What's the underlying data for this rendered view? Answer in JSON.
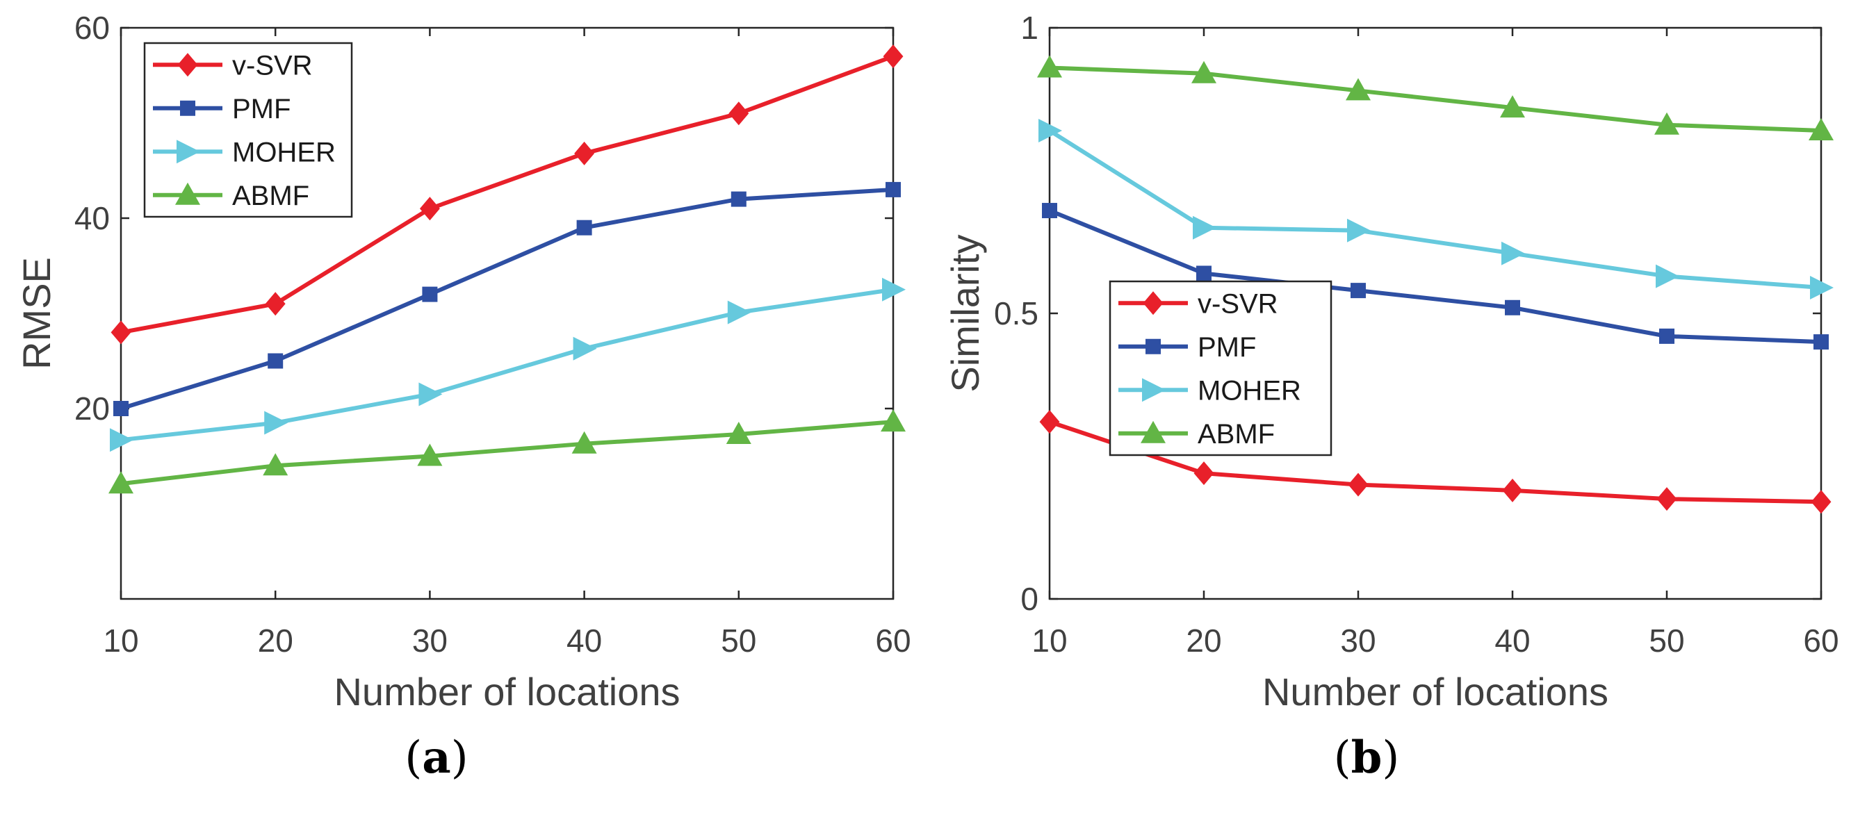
{
  "chart_data": [
    {
      "type": "line",
      "panel_label": "(a)",
      "panel_letter": "a",
      "xlabel": "Number of locations",
      "ylabel": "RMSE",
      "x": [
        10,
        20,
        30,
        40,
        50,
        60
      ],
      "xlim": [
        10,
        60
      ],
      "ylim": [
        0,
        60
      ],
      "xticks": [
        "10",
        "20",
        "30",
        "40",
        "50",
        "60"
      ],
      "yticks": [
        "20",
        "40",
        "60"
      ],
      "ytick_values": [
        20,
        40,
        60
      ],
      "legend_position": "top-left",
      "series": [
        {
          "name": "v-SVR",
          "color": "#e8202a",
          "marker": "diamond",
          "values": [
            28,
            31,
            41,
            46.8,
            51,
            57
          ]
        },
        {
          "name": "PMF",
          "color": "#2e4fa3",
          "marker": "square",
          "values": [
            20,
            25,
            32,
            39,
            42,
            43
          ]
        },
        {
          "name": "MOHER",
          "color": "#66c9dd",
          "marker": "triangle-right",
          "values": [
            16.7,
            18.5,
            21.5,
            26.3,
            30.1,
            32.5
          ]
        },
        {
          "name": "ABMF",
          "color": "#62b545",
          "marker": "triangle-up",
          "values": [
            12.1,
            14,
            15,
            16.3,
            17.3,
            18.6
          ]
        }
      ]
    },
    {
      "type": "line",
      "panel_label": "(b)",
      "panel_letter": "b",
      "xlabel": "Number of locations",
      "ylabel": "Similarity",
      "x": [
        10,
        20,
        30,
        40,
        50,
        60
      ],
      "xlim": [
        10,
        60
      ],
      "ylim": [
        0,
        1
      ],
      "xticks": [
        "10",
        "20",
        "30",
        "40",
        "50",
        "60"
      ],
      "yticks": [
        "0",
        "0.5",
        "1"
      ],
      "ytick_values": [
        0,
        0.5,
        1
      ],
      "legend_position": "center-left",
      "series": [
        {
          "name": "v-SVR",
          "color": "#e8202a",
          "marker": "diamond",
          "values": [
            0.31,
            0.22,
            0.2,
            0.19,
            0.175,
            0.17
          ]
        },
        {
          "name": "PMF",
          "color": "#2e4fa3",
          "marker": "square",
          "values": [
            0.68,
            0.57,
            0.54,
            0.51,
            0.46,
            0.45
          ]
        },
        {
          "name": "MOHER",
          "color": "#66c9dd",
          "marker": "triangle-right",
          "values": [
            0.82,
            0.65,
            0.645,
            0.605,
            0.565,
            0.545
          ]
        },
        {
          "name": "ABMF",
          "color": "#62b545",
          "marker": "triangle-up",
          "values": [
            0.93,
            0.92,
            0.89,
            0.86,
            0.83,
            0.82
          ]
        }
      ]
    }
  ]
}
